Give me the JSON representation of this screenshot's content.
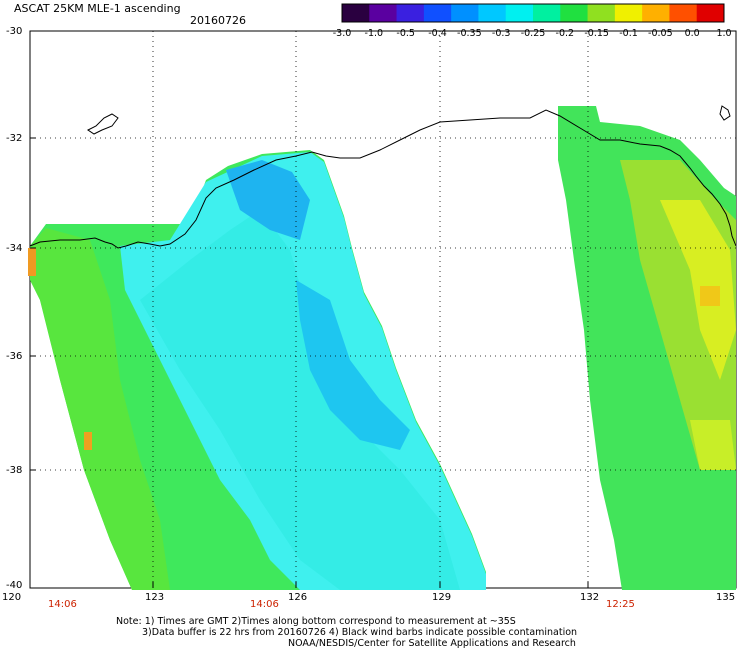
{
  "header": {
    "title": "ASCAT 25KM MLE-1 ascending",
    "date": "20160726"
  },
  "colorbar": {
    "labels": [
      "-3.0",
      "-1.0",
      "-0.5",
      "-0.4",
      "-0.35",
      "-0.3",
      "-0.25",
      "-0.2",
      "-0.15",
      "-0.1",
      "-0.05",
      "0.0",
      "1.0"
    ],
    "colors": [
      "#2a0040",
      "#5a00a0",
      "#3a20e0",
      "#1050ff",
      "#0090ff",
      "#00c8ff",
      "#00f0f0",
      "#00f0a0",
      "#20e040",
      "#90e020",
      "#f0f000",
      "#ffb000",
      "#ff5000",
      "#e00000"
    ]
  },
  "map": {
    "lat_labels": [
      "-30",
      "-32",
      "-34",
      "-36",
      "-38",
      "-40"
    ],
    "lon_labels": [
      "120",
      "123",
      "126",
      "129",
      "132",
      "135"
    ],
    "pass_times": [
      "14:06",
      "14:06",
      "12:25"
    ],
    "swath_colors": {
      "cyan": "#3ff0ee",
      "aqua": "#30e6e0",
      "blue": "#14b8f0",
      "green": "#30e85a",
      "lime": "#5ee63a",
      "yellow": "#c8ee28",
      "orange": "#f0a020"
    }
  },
  "footer": {
    "note_line1": "Note: 1) Times are GMT 2)Times along bottom correspond to measurement at ~35S",
    "note_line2": "3)Data buffer is 22 hrs from 20160726 4) Black wind barbs indicate possible contamination",
    "credit": "NOAA/NESDIS/Center for Satellite Applications and Research"
  }
}
